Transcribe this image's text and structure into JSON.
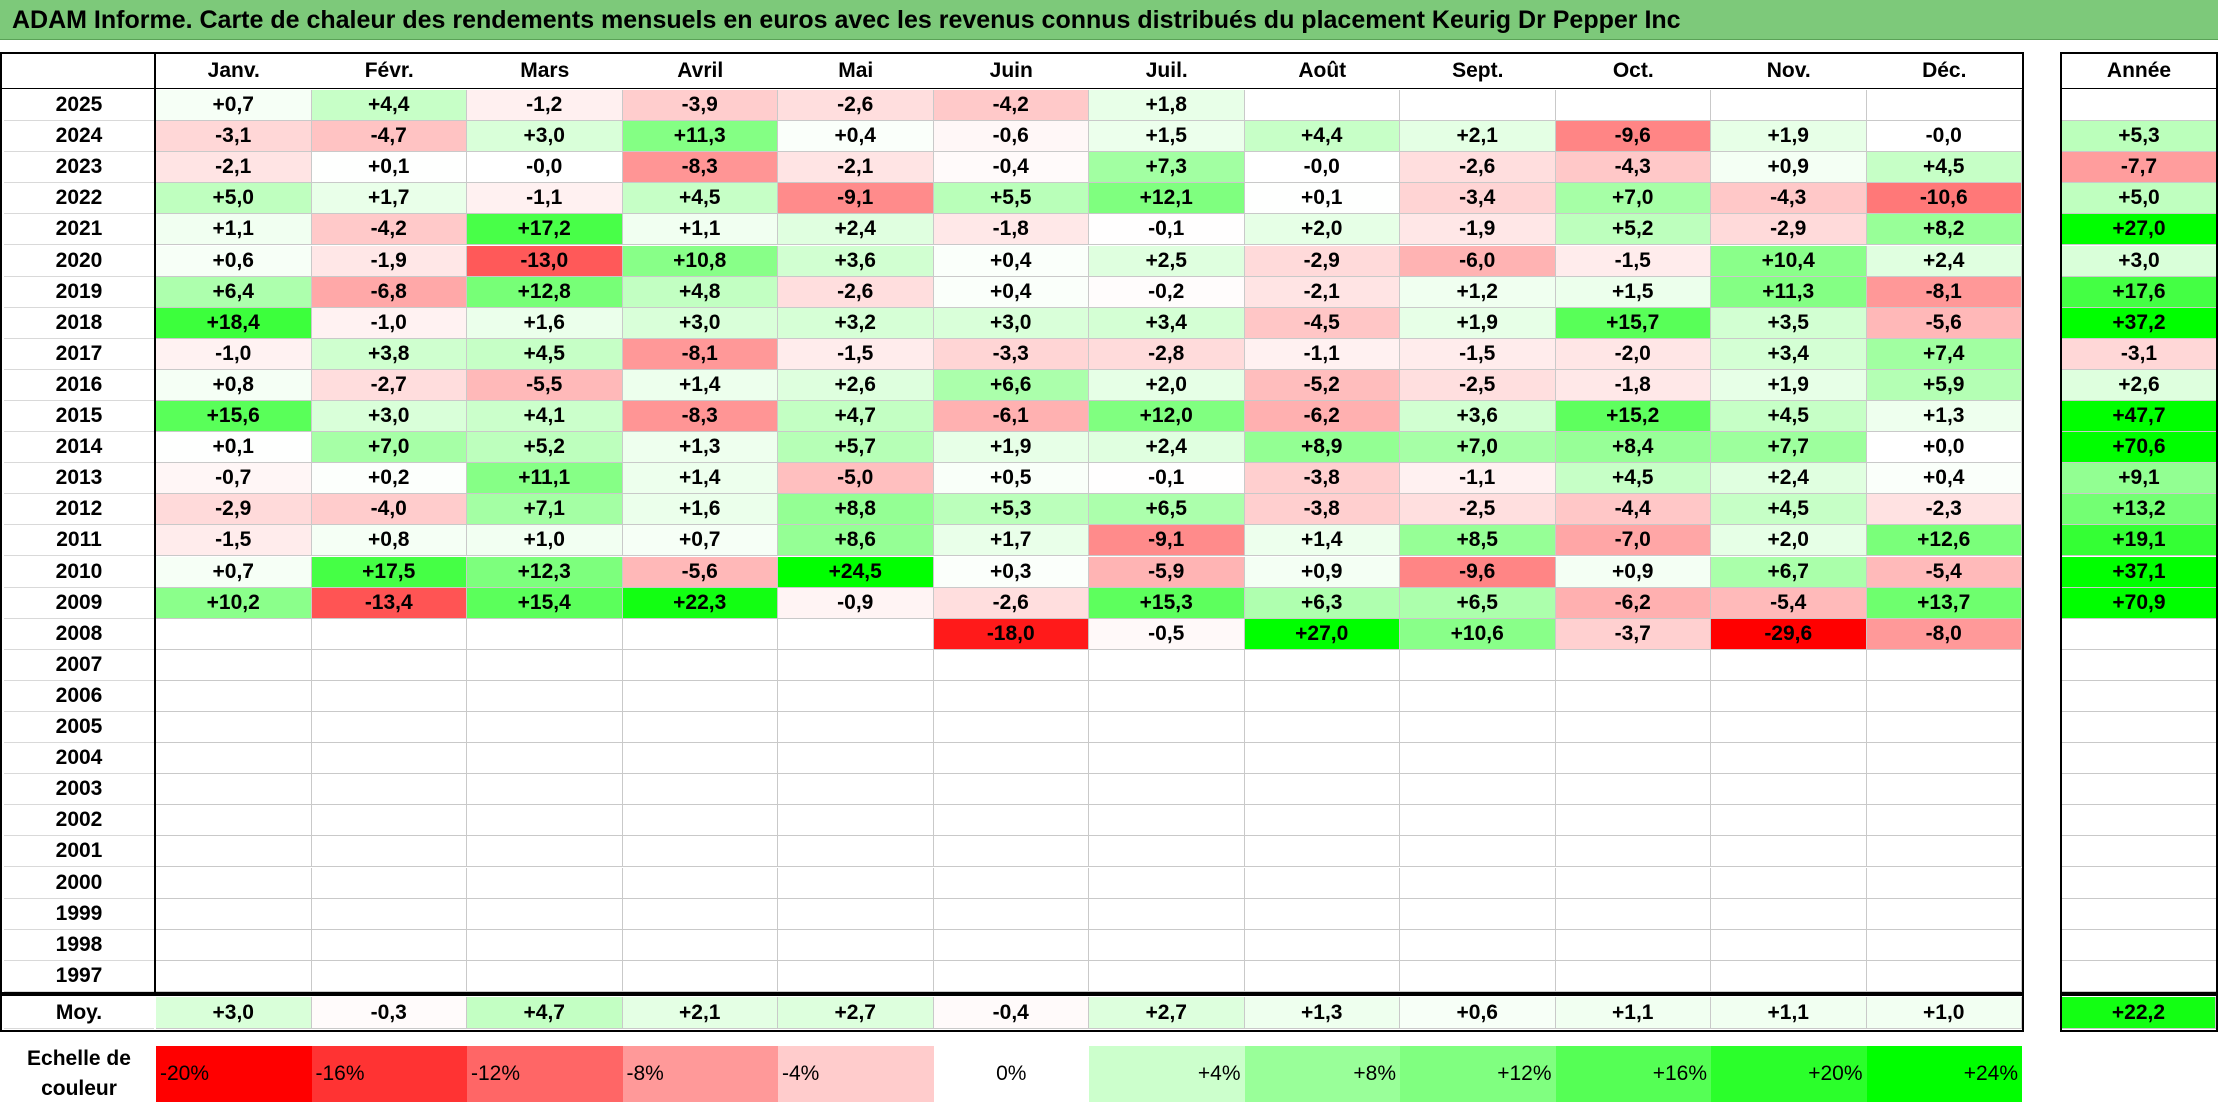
{
  "title": "ADAM Informe. Carte de chaleur des rendements mensuels en euros avec les revenus connus distribués du placement Keurig Dr Pepper Inc",
  "chart_data": {
    "type": "heatmap",
    "months": [
      "Janv.",
      "Févr.",
      "Mars",
      "Avril",
      "Mai",
      "Juin",
      "Juil.",
      "Août",
      "Sept.",
      "Oct.",
      "Nov.",
      "Déc."
    ],
    "year_header": "Année",
    "avg_label": "Moy.",
    "rows": [
      {
        "year": "2025",
        "months": [
          "+0,7",
          "+4,4",
          "-1,2",
          "-3,9",
          "-2,6",
          "-4,2",
          "+1,8",
          "",
          "",
          "",
          "",
          ""
        ],
        "annual": ""
      },
      {
        "year": "2024",
        "months": [
          "-3,1",
          "-4,7",
          "+3,0",
          "+11,3",
          "+0,4",
          "-0,6",
          "+1,5",
          "+4,4",
          "+2,1",
          "-9,6",
          "+1,9",
          "-0,0"
        ],
        "annual": "+5,3"
      },
      {
        "year": "2023",
        "months": [
          "-2,1",
          "+0,1",
          "-0,0",
          "-8,3",
          "-2,1",
          "-0,4",
          "+7,3",
          "-0,0",
          "-2,6",
          "-4,3",
          "+0,9",
          "+4,5"
        ],
        "annual": "-7,7"
      },
      {
        "year": "2022",
        "months": [
          "+5,0",
          "+1,7",
          "-1,1",
          "+4,5",
          "-9,1",
          "+5,5",
          "+12,1",
          "+0,1",
          "-3,4",
          "+7,0",
          "-4,3",
          "-10,6"
        ],
        "annual": "+5,0"
      },
      {
        "year": "2021",
        "months": [
          "+1,1",
          "-4,2",
          "+17,2",
          "+1,1",
          "+2,4",
          "-1,8",
          "-0,1",
          "+2,0",
          "-1,9",
          "+5,2",
          "-2,9",
          "+8,2"
        ],
        "annual": "+27,0"
      },
      {
        "year": "2020",
        "months": [
          "+0,6",
          "-1,9",
          "-13,0",
          "+10,8",
          "+3,6",
          "+0,4",
          "+2,5",
          "-2,9",
          "-6,0",
          "-1,5",
          "+10,4",
          "+2,4"
        ],
        "annual": "+3,0"
      },
      {
        "year": "2019",
        "months": [
          "+6,4",
          "-6,8",
          "+12,8",
          "+4,8",
          "-2,6",
          "+0,4",
          "-0,2",
          "-2,1",
          "+1,2",
          "+1,5",
          "+11,3",
          "-8,1"
        ],
        "annual": "+17,6"
      },
      {
        "year": "2018",
        "months": [
          "+18,4",
          "-1,0",
          "+1,6",
          "+3,0",
          "+3,2",
          "+3,0",
          "+3,4",
          "-4,5",
          "+1,9",
          "+15,7",
          "+3,5",
          "-5,6"
        ],
        "annual": "+37,2"
      },
      {
        "year": "2017",
        "months": [
          "-1,0",
          "+3,8",
          "+4,5",
          "-8,1",
          "-1,5",
          "-3,3",
          "-2,8",
          "-1,1",
          "-1,5",
          "-2,0",
          "+3,4",
          "+7,4"
        ],
        "annual": "-3,1"
      },
      {
        "year": "2016",
        "months": [
          "+0,8",
          "-2,7",
          "-5,5",
          "+1,4",
          "+2,6",
          "+6,6",
          "+2,0",
          "-5,2",
          "-2,5",
          "-1,8",
          "+1,9",
          "+5,9"
        ],
        "annual": "+2,6"
      },
      {
        "year": "2015",
        "months": [
          "+15,6",
          "+3,0",
          "+4,1",
          "-8,3",
          "+4,7",
          "-6,1",
          "+12,0",
          "-6,2",
          "+3,6",
          "+15,2",
          "+4,5",
          "+1,3"
        ],
        "annual": "+47,7"
      },
      {
        "year": "2014",
        "months": [
          "+0,1",
          "+7,0",
          "+5,2",
          "+1,3",
          "+5,7",
          "+1,9",
          "+2,4",
          "+8,9",
          "+7,0",
          "+8,4",
          "+7,7",
          "+0,0"
        ],
        "annual": "+70,6"
      },
      {
        "year": "2013",
        "months": [
          "-0,7",
          "+0,2",
          "+11,1",
          "+1,4",
          "-5,0",
          "+0,5",
          "-0,1",
          "-3,8",
          "-1,1",
          "+4,5",
          "+2,4",
          "+0,4"
        ],
        "annual": "+9,1"
      },
      {
        "year": "2012",
        "months": [
          "-2,9",
          "-4,0",
          "+7,1",
          "+1,6",
          "+8,8",
          "+5,3",
          "+6,5",
          "-3,8",
          "-2,5",
          "-4,4",
          "+4,5",
          "-2,3"
        ],
        "annual": "+13,2"
      },
      {
        "year": "2011",
        "months": [
          "-1,5",
          "+0,8",
          "+1,0",
          "+0,7",
          "+8,6",
          "+1,7",
          "-9,1",
          "+1,4",
          "+8,5",
          "-7,0",
          "+2,0",
          "+12,6"
        ],
        "annual": "+19,1"
      },
      {
        "year": "2010",
        "months": [
          "+0,7",
          "+17,5",
          "+12,3",
          "-5,6",
          "+24,5",
          "+0,3",
          "-5,9",
          "+0,9",
          "-9,6",
          "+0,9",
          "+6,7",
          "-5,4"
        ],
        "annual": "+37,1"
      },
      {
        "year": "2009",
        "months": [
          "+10,2",
          "-13,4",
          "+15,4",
          "+22,3",
          "-0,9",
          "-2,6",
          "+15,3",
          "+6,3",
          "+6,5",
          "-6,2",
          "-5,4",
          "+13,7"
        ],
        "annual": "+70,9"
      },
      {
        "year": "2008",
        "months": [
          "",
          "",
          "",
          "",
          "",
          "-18,0",
          "-0,5",
          "+27,0",
          "+10,6",
          "-3,7",
          "-29,6",
          "-8,0"
        ],
        "annual": ""
      },
      {
        "year": "2007",
        "months": [
          "",
          "",
          "",
          "",
          "",
          "",
          "",
          "",
          "",
          "",
          "",
          ""
        ],
        "annual": ""
      },
      {
        "year": "2006",
        "months": [
          "",
          "",
          "",
          "",
          "",
          "",
          "",
          "",
          "",
          "",
          "",
          ""
        ],
        "annual": ""
      },
      {
        "year": "2005",
        "months": [
          "",
          "",
          "",
          "",
          "",
          "",
          "",
          "",
          "",
          "",
          "",
          ""
        ],
        "annual": ""
      },
      {
        "year": "2004",
        "months": [
          "",
          "",
          "",
          "",
          "",
          "",
          "",
          "",
          "",
          "",
          "",
          ""
        ],
        "annual": ""
      },
      {
        "year": "2003",
        "months": [
          "",
          "",
          "",
          "",
          "",
          "",
          "",
          "",
          "",
          "",
          "",
          ""
        ],
        "annual": ""
      },
      {
        "year": "2002",
        "months": [
          "",
          "",
          "",
          "",
          "",
          "",
          "",
          "",
          "",
          "",
          "",
          ""
        ],
        "annual": ""
      },
      {
        "year": "2001",
        "months": [
          "",
          "",
          "",
          "",
          "",
          "",
          "",
          "",
          "",
          "",
          "",
          ""
        ],
        "annual": ""
      },
      {
        "year": "2000",
        "months": [
          "",
          "",
          "",
          "",
          "",
          "",
          "",
          "",
          "",
          "",
          "",
          ""
        ],
        "annual": ""
      },
      {
        "year": "1999",
        "months": [
          "",
          "",
          "",
          "",
          "",
          "",
          "",
          "",
          "",
          "",
          "",
          ""
        ],
        "annual": ""
      },
      {
        "year": "1998",
        "months": [
          "",
          "",
          "",
          "",
          "",
          "",
          "",
          "",
          "",
          "",
          "",
          ""
        ],
        "annual": ""
      },
      {
        "year": "1997",
        "months": [
          "",
          "",
          "",
          "",
          "",
          "",
          "",
          "",
          "",
          "",
          "",
          ""
        ],
        "annual": ""
      }
    ],
    "average": {
      "months": [
        "+3,0",
        "-0,3",
        "+4,7",
        "+2,1",
        "+2,7",
        "-0,4",
        "+2,7",
        "+1,3",
        "+0,6",
        "+1,1",
        "+1,1",
        "+1,0"
      ],
      "annual": "+22,2"
    },
    "color_scale": {
      "label": "Echelle de couleur",
      "stops": [
        "-20%",
        "-16%",
        "-12%",
        "-8%",
        "-4%",
        "0%",
        "+4%",
        "+8%",
        "+12%",
        "+16%",
        "+20%",
        "+24%"
      ],
      "colors": [
        "#ff0000",
        "#ff3333",
        "#ff6666",
        "#ff9999",
        "#ffcccc",
        "#ffffff",
        "#ccffcc",
        "#99ff99",
        "#80ff80",
        "#55ff55",
        "#2bff2b",
        "#00ff00"
      ]
    }
  }
}
